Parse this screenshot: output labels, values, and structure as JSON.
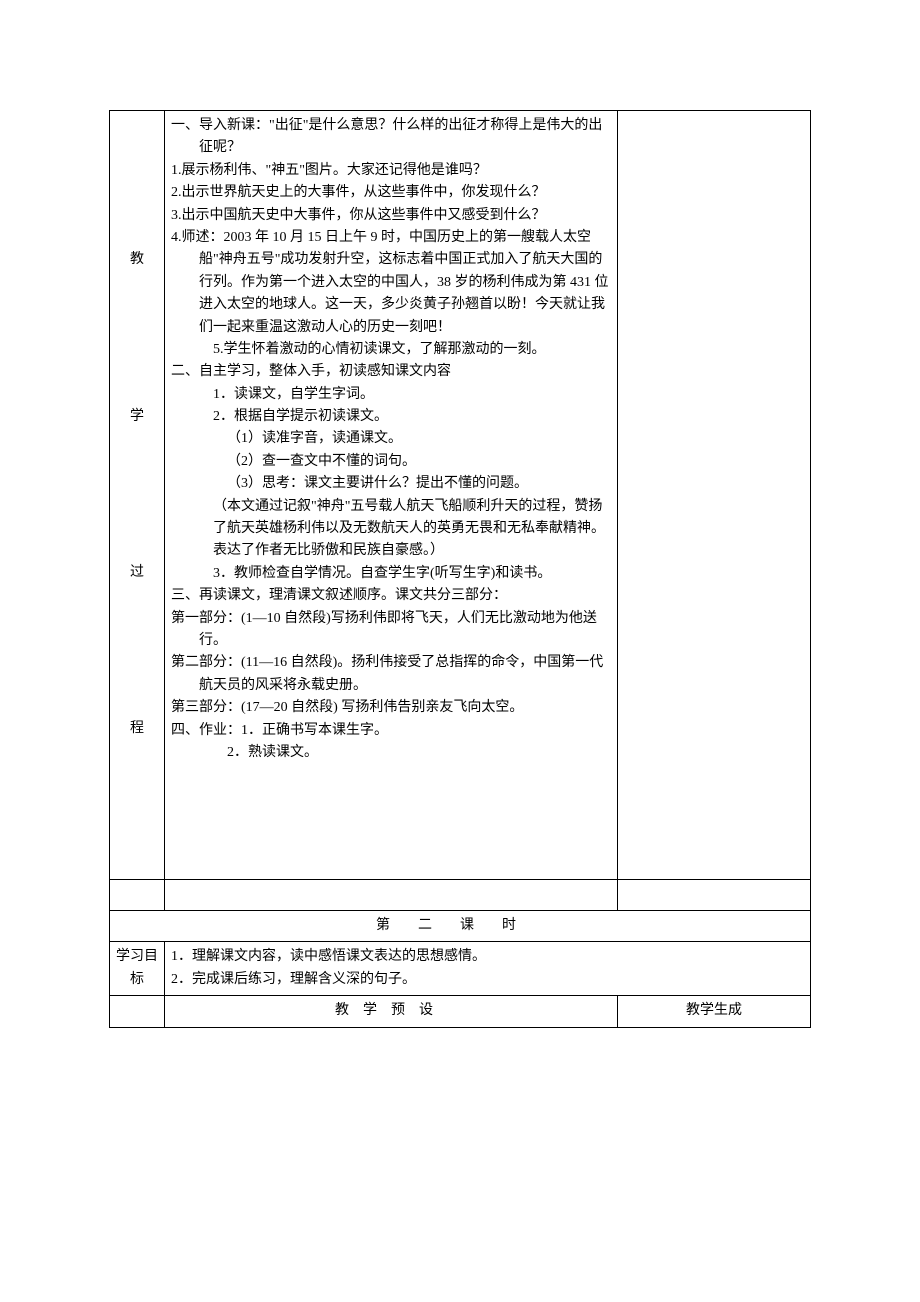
{
  "main": {
    "vlabel": [
      "教",
      "学",
      "过",
      "程"
    ],
    "lines": [
      {
        "cls": "indent1",
        "text": "一、导入新课：\"出征\"是什么意思？什么样的出征才称得上是伟大的出征呢？"
      },
      {
        "cls": "indent1",
        "text": "1.展示杨利伟、\"神五\"图片。大家还记得他是谁吗？"
      },
      {
        "cls": "indent1",
        "text": "2.出示世界航天史上的大事件，从这些事件中，你发现什么？"
      },
      {
        "cls": "indent1",
        "text": "3.出示中国航天史中大事件，你从这些事件中又感受到什么？"
      },
      {
        "cls": "indent1",
        "text": "4.师述：2003 年 10 月 15 日上午 9 时，中国历史上的第一艘载人太空船\"神舟五号\"成功发射升空，这标志着中国正式加入了航天大国的行列。作为第一个进入太空的中国人，38 岁的杨利伟成为第 431 位进入太空的地球人。这一天，多少炎黄子孙翘首以盼！今天就让我们一起来重温这激动人心的历史一刻吧！"
      },
      {
        "cls": "indent2",
        "text": "5.学生怀着激动的心情初读课文，了解那激动的一刻。"
      },
      {
        "cls": "plain",
        "text": "二、自主学习，整体入手，初读感知课文内容"
      },
      {
        "cls": "indent2",
        "text": "1．读课文，自学生字词。"
      },
      {
        "cls": "indent2",
        "text": "2．根据自学提示初读课文。"
      },
      {
        "cls": "indent3",
        "text": "（1）读准字音，读通课文。"
      },
      {
        "cls": "indent3",
        "text": "（2）查一查文中不懂的词句。"
      },
      {
        "cls": "indent3",
        "text": "（3）思考：课文主要讲什么？提出不懂的问题。"
      },
      {
        "cls": "indent2",
        "text": "（本文通过记叙\"神舟\"五号载人航天飞船顺利升天的过程，赞扬了航天英雄杨利伟以及无数航天人的英勇无畏和无私奉献精神。表达了作者无比骄傲和民族自豪感。）"
      },
      {
        "cls": "indent2",
        "text": "3．教师检查自学情况。自查学生字(听写生字)和读书。"
      },
      {
        "cls": "plain",
        "text": "三、再读课文，理清课文叙述顺序。课文共分三部分："
      },
      {
        "cls": "indent1",
        "text": "第一部分：(1—10 自然段)写扬利伟即将飞天，人们无比激动地为他送行。"
      },
      {
        "cls": "indent1",
        "text": "第二部分：(11—16 自然段)。扬利伟接受了总指挥的命令，中国第一代航天员的风采将永载史册。"
      },
      {
        "cls": "indent1",
        "text": "第三部分：(17—20 自然段) 写扬利伟告别亲友飞向太空。"
      },
      {
        "cls": "plain",
        "text": "四、作业：1．正确书写本课生字。"
      },
      {
        "cls": "indent3",
        "text": "2．熟读课文。"
      }
    ]
  },
  "second": {
    "header": "第二课时",
    "goals_label": "学习目标",
    "goals": [
      "1．理解课文内容，读中感悟课文表达的思想感情。",
      "2．完成课后练习，理解含义深的句子。"
    ],
    "footer_left": "教学预设",
    "footer_right": "教学生成"
  },
  "style": {
    "font_family": "SimSun",
    "font_size_pt": 10.5,
    "border_color": "#000000",
    "background_color": "#ffffff",
    "text_color": "#000000"
  }
}
